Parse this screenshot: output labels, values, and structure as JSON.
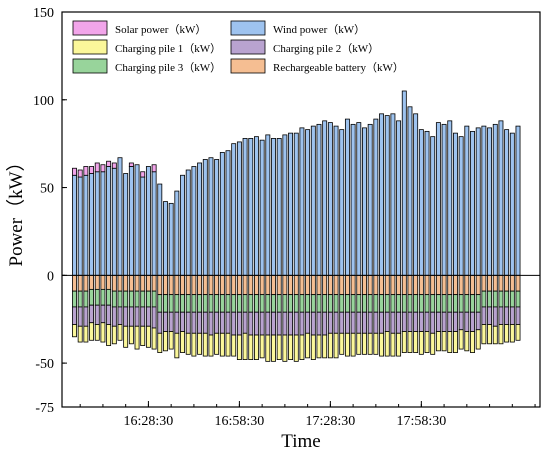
{
  "chart_data": {
    "type": "bar",
    "stacked": true,
    "xlabel": "Time",
    "ylabel": "Power（kW）",
    "ylim": [
      -75,
      150
    ],
    "y_ticks": [
      150,
      100,
      50,
      0,
      -50,
      -75
    ],
    "y_tick_labels": [
      "150",
      "100",
      "50",
      "0",
      "-50",
      "-75"
    ],
    "x_ticks": [
      {
        "index": 13,
        "label": "16:28:30"
      },
      {
        "index": 29,
        "label": "16:58:30"
      },
      {
        "index": 45,
        "label": "17:28:30"
      },
      {
        "index": 61,
        "label": "17:58:30"
      }
    ],
    "grid": false,
    "legend": "top-left, inside, two columns",
    "series": [
      {
        "name": "Solar power（kW）",
        "color": "#f2a5ea",
        "sign": "positive",
        "values": [
          4,
          4,
          5,
          4,
          5,
          4,
          3,
          3,
          0,
          0,
          2,
          0,
          3,
          0,
          4,
          0,
          0,
          0,
          0,
          0,
          0,
          0,
          0,
          0,
          0,
          0,
          0,
          0,
          0,
          0,
          0,
          0,
          0,
          0,
          0,
          0,
          0,
          0,
          0,
          0,
          0,
          0,
          0,
          0,
          0,
          0,
          0,
          0,
          0,
          0,
          0,
          0,
          0,
          0,
          0,
          0,
          0,
          0,
          0,
          0,
          0,
          0,
          0,
          0,
          0,
          0,
          0,
          0,
          0,
          0,
          0,
          0,
          0,
          0,
          0,
          0,
          0,
          0,
          0
        ]
      },
      {
        "name": "Wind power（kW）",
        "color": "#9ec3ef",
        "sign": "positive",
        "values": [
          57,
          56,
          57,
          58,
          59,
          59,
          62,
          61,
          67,
          58,
          62,
          63,
          56,
          62,
          59,
          52,
          42,
          41,
          48,
          57,
          60,
          62,
          64,
          66,
          67,
          66,
          70,
          71,
          75,
          76,
          78,
          78,
          79,
          77,
          80,
          78,
          78,
          80,
          81,
          81,
          84,
          83,
          85,
          86,
          88,
          87,
          85,
          83,
          89,
          86,
          87,
          84,
          86,
          89,
          92,
          91,
          92,
          88,
          105,
          96,
          92,
          83,
          82,
          79,
          87,
          86,
          88,
          81,
          79,
          85,
          82,
          84,
          85,
          84,
          86,
          88,
          83,
          81,
          85
        ]
      },
      {
        "name": "Charging pile 1（kW）",
        "color": "#fbf79a",
        "sign": "negative",
        "values": [
          7,
          9,
          9,
          10,
          9,
          11,
          12,
          10,
          9,
          12,
          10,
          13,
          11,
          12,
          12,
          11,
          11,
          10,
          14,
          12,
          12,
          13,
          12,
          13,
          12,
          12,
          13,
          13,
          12,
          14,
          15,
          14,
          14,
          13,
          15,
          15,
          14,
          15,
          14,
          15,
          14,
          14,
          14,
          13,
          13,
          14,
          14,
          12,
          13,
          13,
          12,
          12,
          12,
          12,
          13,
          14,
          13,
          13,
          12,
          12,
          12,
          13,
          12,
          12,
          11,
          11,
          12,
          12,
          11,
          11,
          12,
          11,
          11,
          11,
          10,
          11,
          10,
          10,
          9
        ]
      },
      {
        "name": "Charging pile 2（kW）",
        "color": "#b9a3d0",
        "sign": "negative",
        "values": [
          10,
          11,
          11,
          10,
          11,
          10,
          11,
          11,
          10,
          11,
          11,
          11,
          11,
          11,
          12,
          12,
          11,
          11,
          12,
          11,
          12,
          12,
          12,
          12,
          13,
          12,
          12,
          12,
          13,
          13,
          12,
          13,
          13,
          13,
          13,
          13,
          13,
          13,
          13,
          13,
          13,
          12,
          13,
          13,
          13,
          12,
          12,
          12,
          12,
          12,
          12,
          12,
          12,
          12,
          12,
          11,
          12,
          12,
          11,
          11,
          11,
          11,
          11,
          12,
          11,
          11,
          11,
          11,
          10,
          11,
          11,
          10,
          10,
          10,
          11,
          10,
          10,
          10,
          10
        ]
      },
      {
        "name": "Charging pile 3（kW）",
        "color": "#98d49b",
        "sign": "negative",
        "values": [
          9,
          9,
          9,
          9,
          9,
          9,
          9,
          9,
          9,
          9,
          9,
          9,
          9,
          9,
          9,
          10,
          10,
          10,
          10,
          10,
          10,
          10,
          10,
          10,
          10,
          10,
          10,
          10,
          10,
          10,
          10,
          10,
          10,
          10,
          10,
          10,
          10,
          10,
          10,
          10,
          10,
          10,
          10,
          10,
          10,
          10,
          10,
          10,
          10,
          10,
          10,
          10,
          10,
          10,
          10,
          10,
          10,
          10,
          10,
          10,
          10,
          10,
          10,
          10,
          10,
          10,
          10,
          10,
          10,
          10,
          10,
          10,
          9,
          9,
          9,
          9,
          9,
          9,
          9
        ]
      },
      {
        "name": "Rechargeable battery（kW）",
        "color": "#f5be92",
        "sign": "negative",
        "values": [
          9,
          9,
          9,
          8,
          8,
          8,
          8,
          9,
          9,
          9,
          9,
          9,
          9,
          9,
          9,
          11,
          11,
          11,
          11,
          11,
          11,
          11,
          11,
          11,
          11,
          11,
          11,
          11,
          11,
          11,
          11,
          11,
          11,
          11,
          11,
          11,
          11,
          11,
          11,
          11,
          11,
          11,
          11,
          11,
          11,
          11,
          11,
          11,
          11,
          11,
          11,
          11,
          11,
          11,
          11,
          11,
          11,
          11,
          11,
          11,
          11,
          11,
          11,
          11,
          11,
          11,
          11,
          11,
          11,
          11,
          11,
          11,
          9,
          9,
          9,
          9,
          9,
          9,
          9
        ]
      }
    ]
  },
  "legend_items": [
    {
      "label": "Solar power（kW）",
      "color": "#f2a5ea"
    },
    {
      "label": "Wind power（kW）",
      "color": "#9ec3ef"
    },
    {
      "label": "Charging pile 1（kW）",
      "color": "#fbf79a"
    },
    {
      "label": "Charging pile 2（kW）",
      "color": "#b9a3d0"
    },
    {
      "label": "Charging pile 3（kW）",
      "color": "#98d49b"
    },
    {
      "label": "Rechargeable battery（kW）",
      "color": "#f5be92"
    }
  ]
}
